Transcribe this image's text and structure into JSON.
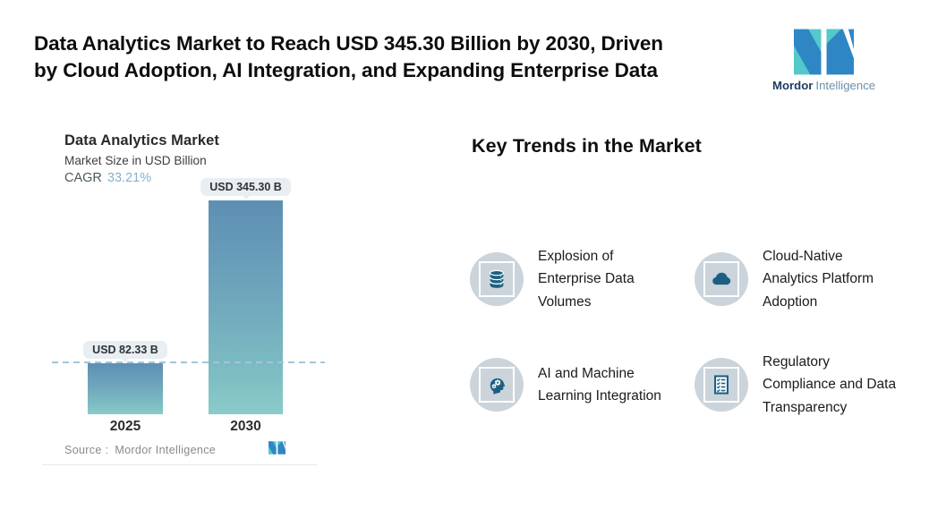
{
  "header": {
    "title_line1": "Data Analytics Market to Reach USD 345.30 Billion by 2030, Driven",
    "title_line2": "by Cloud Adoption, AI Integration, and Expanding Enterprise Data",
    "logo": {
      "brand_bold": "Mordor",
      "brand_light": "Intelligence"
    }
  },
  "chart_data": {
    "type": "bar",
    "title": "Data Analytics Market",
    "subtitle": "Market Size in USD Billion",
    "cagr_label": "CAGR",
    "cagr_value": "33.21%",
    "categories": [
      "2025",
      "2030"
    ],
    "values": [
      82.33,
      345.3
    ],
    "bar_labels": [
      "USD 82.33 B",
      "USD 345.30 B"
    ],
    "unit": "USD Billion",
    "ylim": [
      0,
      345.3
    ],
    "reference_line": {
      "at_value": 82.33,
      "style": "dashed"
    },
    "source_label": "Source :",
    "source_value": "Mordor Intelligence",
    "colors": {
      "bar_top": "#5e8fb4",
      "bar_bottom": "#8bcbca",
      "dash": "#a2c5da",
      "pill_bg": "#e8eef1"
    }
  },
  "trends": {
    "heading": "Key Trends in the Market",
    "items": [
      {
        "icon": "database-icon",
        "label": "Explosion of Enterprise Data Volumes"
      },
      {
        "icon": "cloud-icon",
        "label": "Cloud-Native Analytics Platform Adoption"
      },
      {
        "icon": "ai-head-gears-icon",
        "label": "AI and Machine Learning Integration"
      },
      {
        "icon": "checklist-icon",
        "label": "Regulatory Compliance and Data Transparency"
      }
    ],
    "icon_color": "#1d5f82",
    "badge_color": "#cbd4db"
  }
}
